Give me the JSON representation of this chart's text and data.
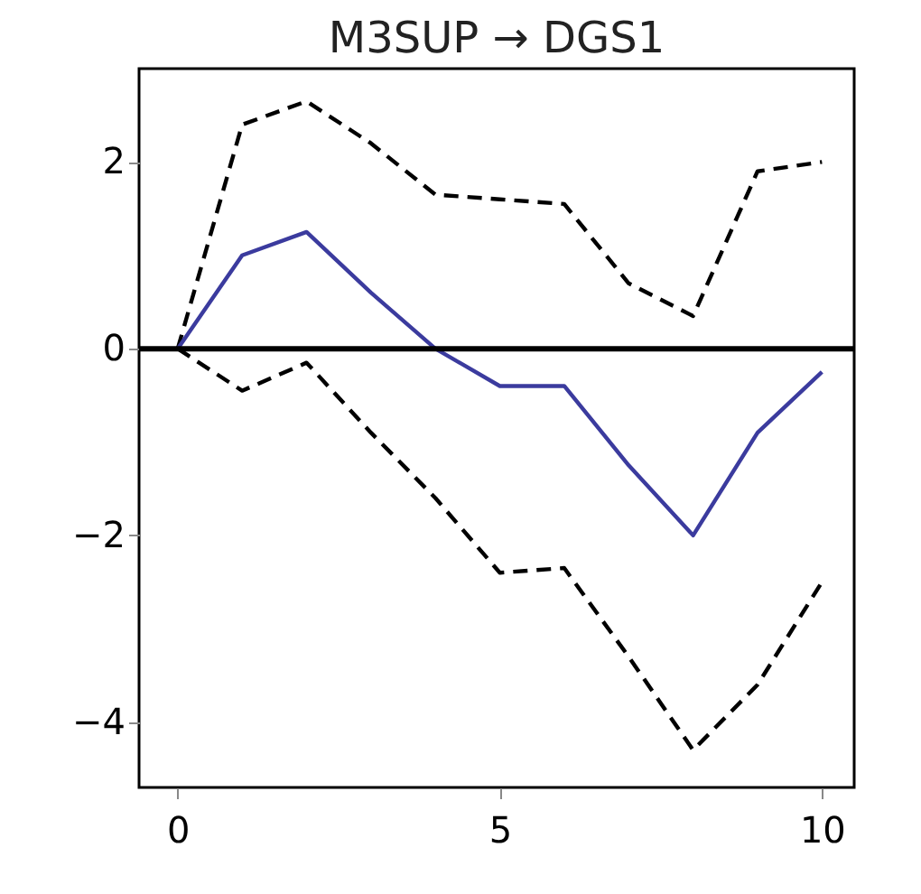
{
  "chart_data": {
    "type": "line",
    "title": "M3SUP → DGS1",
    "x": [
      0,
      1,
      2,
      3,
      4,
      5,
      6,
      7,
      8,
      9,
      10
    ],
    "series": [
      {
        "color": "#000000",
        "line_style": "dashed",
        "values": [
          0,
          2.4,
          2.65,
          2.2,
          1.65,
          1.6,
          1.55,
          0.7,
          0.35,
          1.9,
          2.0
        ]
      },
      {
        "color": "#000000",
        "line_style": "dashed",
        "values": [
          0,
          -0.45,
          -0.15,
          -0.9,
          -1.6,
          -2.4,
          -2.35,
          -3.3,
          -4.3,
          -3.6,
          -2.5
        ]
      },
      {
        "color": "#3b3b9e",
        "line_style": "solid",
        "values": [
          0,
          1.0,
          1.25,
          0.6,
          0,
          -0.4,
          -0.4,
          -1.25,
          -2.0,
          -0.9,
          -0.25
        ]
      }
    ],
    "xlim": [
      -0.6,
      10.5
    ],
    "xticks": [
      0,
      5,
      10
    ],
    "ylim": [
      -4.7,
      3.0
    ],
    "yticks": [
      -4,
      -2,
      0,
      2
    ],
    "ref_lines": [
      {
        "axis": "y",
        "value": 0,
        "color": "#000000"
      }
    ],
    "grid": false,
    "marker": "none"
  }
}
